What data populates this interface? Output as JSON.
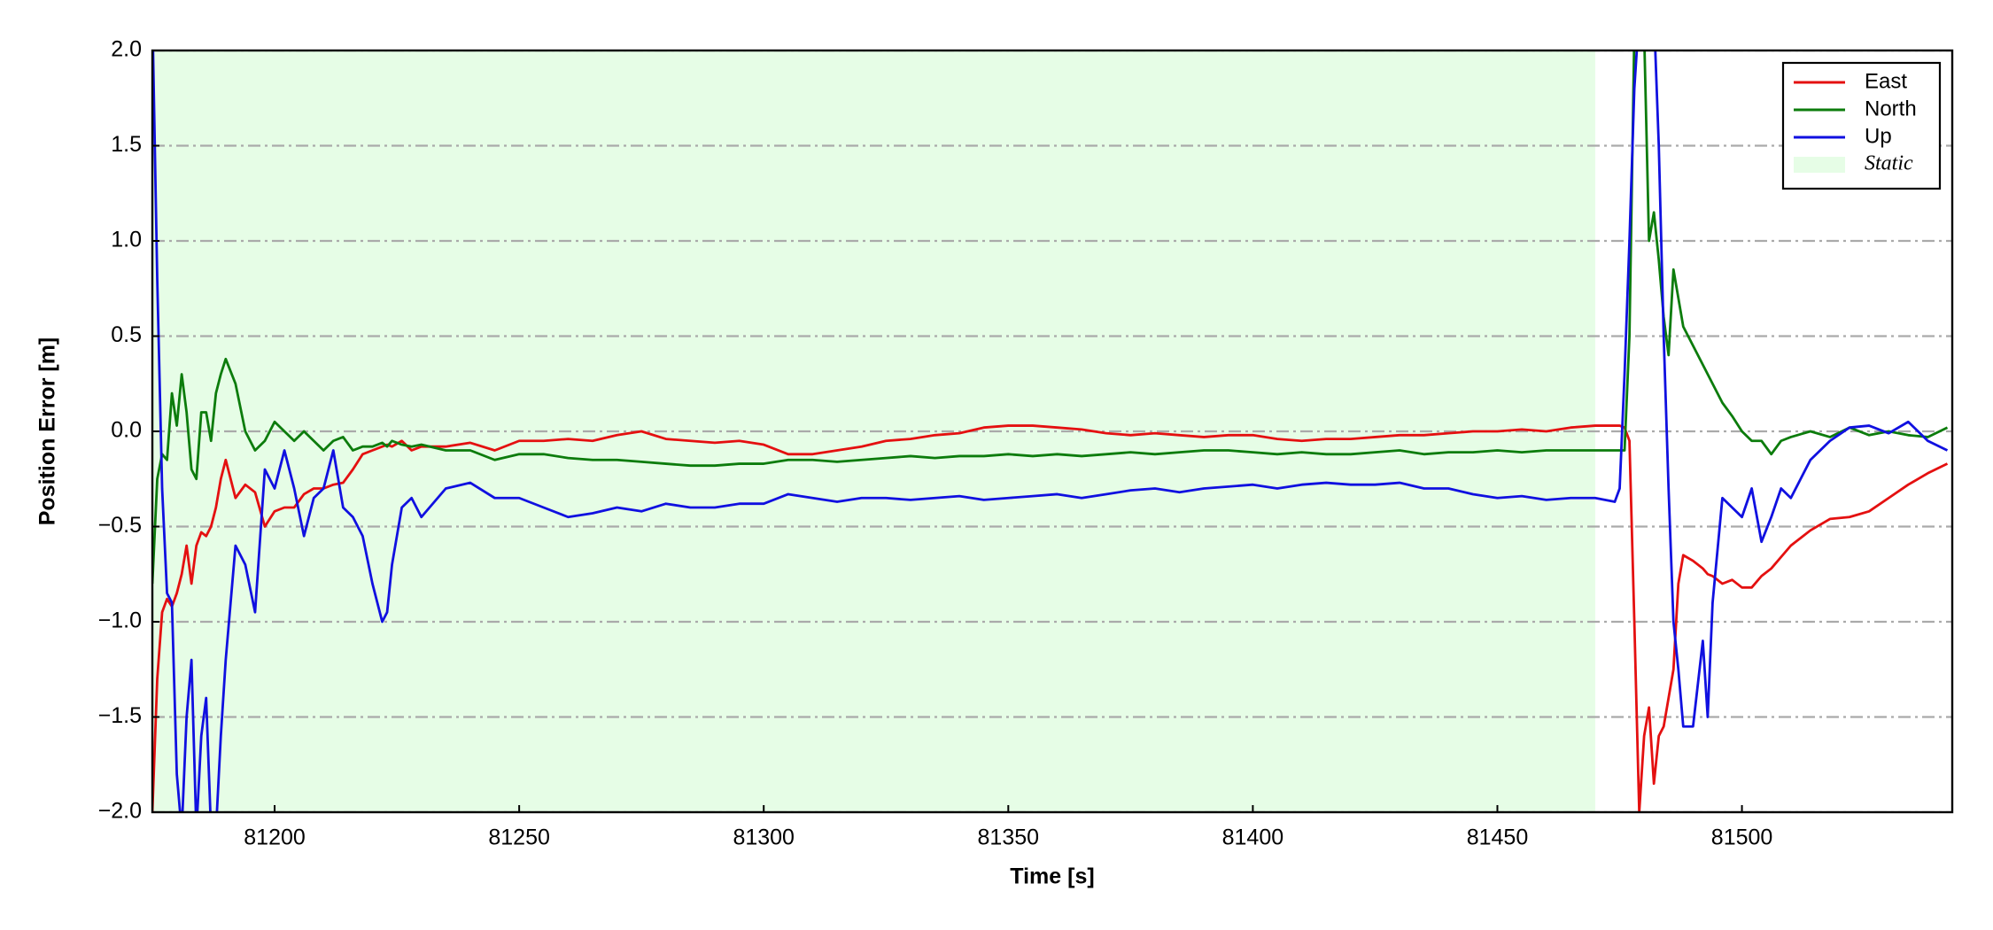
{
  "chart_data": {
    "type": "line",
    "xlabel": "Time [s]",
    "ylabel": "Position Error [m]",
    "x": [
      81175,
      81176,
      81177,
      81178,
      81179,
      81180,
      81181,
      81182,
      81183,
      81184,
      81185,
      81186,
      81187,
      81188,
      81189,
      81190,
      81192,
      81194,
      81196,
      81198,
      81200,
      81202,
      81204,
      81206,
      81208,
      81210,
      81212,
      81214,
      81216,
      81218,
      81220,
      81222,
      81223,
      81224,
      81226,
      81228,
      81230,
      81235,
      81240,
      81245,
      81250,
      81255,
      81260,
      81265,
      81270,
      81275,
      81280,
      81285,
      81290,
      81295,
      81300,
      81305,
      81310,
      81315,
      81320,
      81325,
      81330,
      81335,
      81340,
      81345,
      81350,
      81355,
      81360,
      81365,
      81370,
      81375,
      81380,
      81385,
      81390,
      81395,
      81400,
      81405,
      81410,
      81415,
      81420,
      81425,
      81430,
      81435,
      81440,
      81445,
      81450,
      81455,
      81460,
      81465,
      81470,
      81472,
      81474,
      81475,
      81476,
      81477,
      81478,
      81479,
      81480,
      81481,
      81482,
      81483,
      81484,
      81485,
      81486,
      81487,
      81488,
      81490,
      81492,
      81493,
      81494,
      81496,
      81498,
      81500,
      81502,
      81504,
      81506,
      81508,
      81510,
      81514,
      81518,
      81522,
      81526,
      81530,
      81534,
      81538,
      81542
    ],
    "series": [
      {
        "name": "East",
        "color": "#e41010",
        "values": [
          -2.0,
          -1.3,
          -0.95,
          -0.88,
          -0.92,
          -0.85,
          -0.75,
          -0.6,
          -0.8,
          -0.6,
          -0.53,
          -0.55,
          -0.5,
          -0.4,
          -0.25,
          -0.15,
          -0.35,
          -0.28,
          -0.32,
          -0.5,
          -0.42,
          -0.4,
          -0.4,
          -0.33,
          -0.3,
          -0.3,
          -0.28,
          -0.27,
          -0.2,
          -0.12,
          -0.1,
          -0.08,
          -0.07,
          -0.08,
          -0.05,
          -0.1,
          -0.08,
          -0.08,
          -0.06,
          -0.1,
          -0.05,
          -0.05,
          -0.04,
          -0.05,
          -0.02,
          0.0,
          -0.04,
          -0.05,
          -0.06,
          -0.05,
          -0.07,
          -0.12,
          -0.12,
          -0.1,
          -0.08,
          -0.05,
          -0.04,
          -0.02,
          -0.01,
          0.02,
          0.03,
          0.03,
          0.02,
          0.01,
          -0.01,
          -0.02,
          -0.01,
          -0.02,
          -0.03,
          -0.02,
          -0.02,
          -0.04,
          -0.05,
          -0.04,
          -0.04,
          -0.03,
          -0.02,
          -0.02,
          -0.01,
          0.0,
          0.0,
          0.01,
          0.0,
          0.02,
          0.03,
          0.03,
          0.03,
          0.03,
          0.02,
          -0.05,
          -1.0,
          -2.0,
          -1.6,
          -1.45,
          -1.85,
          -1.6,
          -1.55,
          -1.4,
          -1.25,
          -0.8,
          -0.65,
          -0.68,
          -0.72,
          -0.75,
          -0.76,
          -0.8,
          -0.78,
          -0.82,
          -0.82,
          -0.76,
          -0.72,
          -0.66,
          -0.6,
          -0.52,
          -0.46,
          -0.45,
          -0.42,
          -0.35,
          -0.28,
          -0.22,
          -0.17
        ]
      },
      {
        "name": "North",
        "color": "#0c7c0c",
        "values": [
          -0.8,
          -0.25,
          -0.12,
          -0.15,
          0.2,
          0.03,
          0.3,
          0.1,
          -0.2,
          -0.25,
          0.1,
          0.1,
          -0.05,
          0.2,
          0.3,
          0.38,
          0.25,
          0.0,
          -0.1,
          -0.05,
          0.05,
          0.0,
          -0.05,
          0.0,
          -0.05,
          -0.1,
          -0.05,
          -0.03,
          -0.1,
          -0.08,
          -0.08,
          -0.06,
          -0.08,
          -0.05,
          -0.07,
          -0.08,
          -0.07,
          -0.1,
          -0.1,
          -0.15,
          -0.12,
          -0.12,
          -0.14,
          -0.15,
          -0.15,
          -0.16,
          -0.17,
          -0.18,
          -0.18,
          -0.17,
          -0.17,
          -0.15,
          -0.15,
          -0.16,
          -0.15,
          -0.14,
          -0.13,
          -0.14,
          -0.13,
          -0.13,
          -0.12,
          -0.13,
          -0.12,
          -0.13,
          -0.12,
          -0.11,
          -0.12,
          -0.11,
          -0.1,
          -0.1,
          -0.11,
          -0.12,
          -0.11,
          -0.12,
          -0.12,
          -0.11,
          -0.1,
          -0.12,
          -0.11,
          -0.11,
          -0.1,
          -0.11,
          -0.1,
          -0.1,
          -0.1,
          -0.1,
          -0.1,
          -0.1,
          -0.1,
          0.5,
          2.1,
          2.1,
          2.1,
          1.0,
          1.15,
          0.9,
          0.6,
          0.4,
          0.85,
          0.7,
          0.55,
          0.45,
          0.35,
          0.3,
          0.25,
          0.15,
          0.08,
          0.0,
          -0.05,
          -0.05,
          -0.12,
          -0.05,
          -0.03,
          0.0,
          -0.03,
          0.02,
          -0.02,
          0.0,
          -0.02,
          -0.03,
          0.02
        ]
      },
      {
        "name": "Up",
        "color": "#1010e0",
        "values": [
          2.2,
          0.8,
          -0.3,
          -0.85,
          -0.9,
          -1.8,
          -2.1,
          -1.5,
          -1.2,
          -2.1,
          -1.6,
          -1.4,
          -2.1,
          -2.1,
          -1.6,
          -1.2,
          -0.6,
          -0.7,
          -0.95,
          -0.2,
          -0.3,
          -0.1,
          -0.3,
          -0.55,
          -0.35,
          -0.3,
          -0.1,
          -0.4,
          -0.45,
          -0.55,
          -0.8,
          -1.0,
          -0.95,
          -0.7,
          -0.4,
          -0.35,
          -0.45,
          -0.3,
          -0.27,
          -0.35,
          -0.35,
          -0.4,
          -0.45,
          -0.43,
          -0.4,
          -0.42,
          -0.38,
          -0.4,
          -0.4,
          -0.38,
          -0.38,
          -0.33,
          -0.35,
          -0.37,
          -0.35,
          -0.35,
          -0.36,
          -0.35,
          -0.34,
          -0.36,
          -0.35,
          -0.34,
          -0.33,
          -0.35,
          -0.33,
          -0.31,
          -0.3,
          -0.32,
          -0.3,
          -0.29,
          -0.28,
          -0.3,
          -0.28,
          -0.27,
          -0.28,
          -0.28,
          -0.27,
          -0.3,
          -0.3,
          -0.33,
          -0.35,
          -0.34,
          -0.36,
          -0.35,
          -0.35,
          -0.36,
          -0.37,
          -0.3,
          0.3,
          1.0,
          1.8,
          2.2,
          2.2,
          2.2,
          2.2,
          1.5,
          0.5,
          -0.3,
          -1.0,
          -1.25,
          -1.55,
          -1.55,
          -1.1,
          -1.5,
          -0.9,
          -0.35,
          -0.4,
          -0.45,
          -0.3,
          -0.58,
          -0.45,
          -0.3,
          -0.35,
          -0.15,
          -0.05,
          0.02,
          0.03,
          -0.01,
          0.05,
          -0.05,
          -0.1
        ]
      }
    ],
    "shaded": {
      "name": "Static",
      "color": "#e6fde6",
      "xlim": [
        81175,
        81470
      ]
    },
    "xlim": [
      81175,
      81543
    ],
    "ylim": [
      -2.0,
      2.0
    ],
    "xticks": [
      81200,
      81250,
      81300,
      81350,
      81400,
      81450,
      81500
    ],
    "yticks": [
      {
        "value": -2.0,
        "label": "−2.0"
      },
      {
        "value": -1.5,
        "label": "−1.5"
      },
      {
        "value": -1.0,
        "label": "−1.0"
      },
      {
        "value": -0.5,
        "label": "−0.5"
      },
      {
        "value": 0.0,
        "label": "0.0"
      },
      {
        "value": 0.5,
        "label": "0.5"
      },
      {
        "value": 1.0,
        "label": "1.0"
      },
      {
        "value": 1.5,
        "label": "1.5"
      },
      {
        "value": 2.0,
        "label": "2.0"
      }
    ],
    "grid": true,
    "legend": "upper right"
  }
}
